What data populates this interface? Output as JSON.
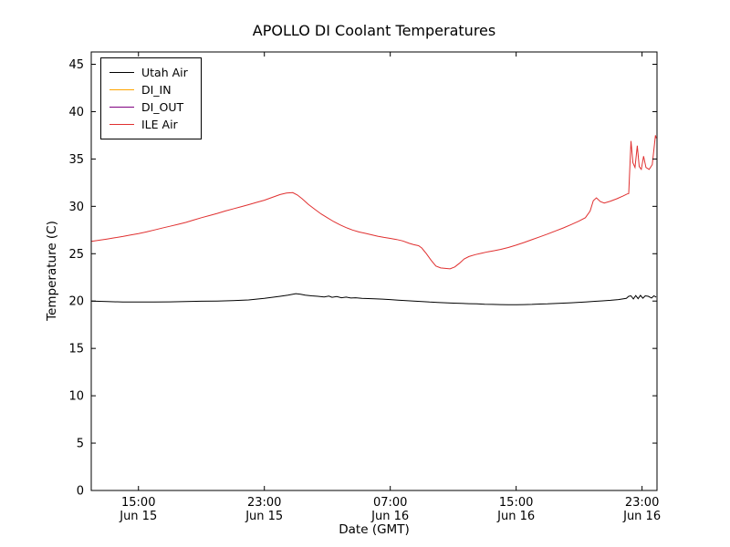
{
  "figure": {
    "background_color": "#ffffff",
    "axes_edge_color": "#000000"
  },
  "chart_data": {
    "type": "line",
    "title": "APOLLO DI Coolant Temperatures",
    "xlabel": "Date (GMT)",
    "ylabel": "Temperature (C)",
    "grid": false,
    "legend_position": "upper left",
    "ylim": [
      0,
      46.3
    ],
    "yticks": [
      0,
      5,
      10,
      15,
      20,
      25,
      30,
      35,
      40,
      45
    ],
    "x_axis_note": "x values are hours after Jun 15 12:00 GMT",
    "xlim_hours": [
      0,
      35.95
    ],
    "xticks": [
      {
        "t": 3,
        "time": "15:00",
        "date": "Jun 15"
      },
      {
        "t": 11,
        "time": "23:00",
        "date": "Jun 15"
      },
      {
        "t": 19,
        "time": "07:00",
        "date": "Jun 16"
      },
      {
        "t": 27,
        "time": "15:00",
        "date": "Jun 16"
      },
      {
        "t": 35,
        "time": "23:00",
        "date": "Jun 16"
      }
    ],
    "series": [
      {
        "name": "Utah Air",
        "color": "#000000",
        "points": [
          [
            0,
            20.0
          ],
          [
            1,
            19.95
          ],
          [
            2,
            19.9
          ],
          [
            3,
            19.9
          ],
          [
            4,
            19.9
          ],
          [
            5,
            19.92
          ],
          [
            6,
            19.95
          ],
          [
            7,
            19.98
          ],
          [
            8,
            20.0
          ],
          [
            9,
            20.05
          ],
          [
            10,
            20.12
          ],
          [
            11,
            20.28
          ],
          [
            12,
            20.5
          ],
          [
            12.5,
            20.62
          ],
          [
            13,
            20.78
          ],
          [
            13.3,
            20.72
          ],
          [
            13.6,
            20.62
          ],
          [
            14,
            20.55
          ],
          [
            14.4,
            20.5
          ],
          [
            14.8,
            20.44
          ],
          [
            15.1,
            20.52
          ],
          [
            15.3,
            20.4
          ],
          [
            15.6,
            20.47
          ],
          [
            15.9,
            20.35
          ],
          [
            16.2,
            20.42
          ],
          [
            16.5,
            20.32
          ],
          [
            16.8,
            20.35
          ],
          [
            17.2,
            20.28
          ],
          [
            17.6,
            20.26
          ],
          [
            18,
            20.24
          ],
          [
            18.5,
            20.2
          ],
          [
            19,
            20.16
          ],
          [
            19.5,
            20.1
          ],
          [
            20,
            20.05
          ],
          [
            20.5,
            20.0
          ],
          [
            21,
            19.95
          ],
          [
            21.5,
            19.9
          ],
          [
            22,
            19.86
          ],
          [
            22.5,
            19.82
          ],
          [
            23,
            19.78
          ],
          [
            23.5,
            19.75
          ],
          [
            24,
            19.72
          ],
          [
            24.5,
            19.7
          ],
          [
            25,
            19.67
          ],
          [
            25.5,
            19.65
          ],
          [
            26,
            19.63
          ],
          [
            26.5,
            19.62
          ],
          [
            27,
            19.62
          ],
          [
            27.5,
            19.63
          ],
          [
            28,
            19.65
          ],
          [
            28.5,
            19.68
          ],
          [
            29,
            19.7
          ],
          [
            29.5,
            19.74
          ],
          [
            30,
            19.78
          ],
          [
            30.5,
            19.82
          ],
          [
            31,
            19.87
          ],
          [
            31.5,
            19.92
          ],
          [
            32,
            19.97
          ],
          [
            32.5,
            20.02
          ],
          [
            33,
            20.08
          ],
          [
            33.5,
            20.16
          ],
          [
            34,
            20.28
          ],
          [
            34.15,
            20.5
          ],
          [
            34.3,
            20.55
          ],
          [
            34.45,
            20.22
          ],
          [
            34.6,
            20.58
          ],
          [
            34.75,
            20.25
          ],
          [
            34.9,
            20.6
          ],
          [
            35.05,
            20.3
          ],
          [
            35.2,
            20.55
          ],
          [
            35.4,
            20.5
          ],
          [
            35.6,
            20.32
          ],
          [
            35.75,
            20.55
          ],
          [
            35.9,
            20.42
          ]
        ]
      },
      {
        "name": "DI_IN",
        "color": "#ffa500",
        "points": [],
        "note": "in legend, no data visible in plot"
      },
      {
        "name": "DI_OUT",
        "color": "#800080",
        "points": [],
        "note": "in legend, no data visible in plot"
      },
      {
        "name": "ILE Air",
        "color": "#e03030",
        "points": [
          [
            0,
            26.3
          ],
          [
            0.5,
            26.42
          ],
          [
            1,
            26.55
          ],
          [
            1.5,
            26.68
          ],
          [
            2,
            26.82
          ],
          [
            2.5,
            26.97
          ],
          [
            3,
            27.12
          ],
          [
            3.5,
            27.3
          ],
          [
            4,
            27.5
          ],
          [
            4.5,
            27.7
          ],
          [
            5,
            27.9
          ],
          [
            5.5,
            28.1
          ],
          [
            6,
            28.3
          ],
          [
            6.5,
            28.55
          ],
          [
            7,
            28.8
          ],
          [
            7.5,
            29.02
          ],
          [
            8,
            29.25
          ],
          [
            8.5,
            29.5
          ],
          [
            9,
            29.72
          ],
          [
            9.5,
            29.95
          ],
          [
            10,
            30.18
          ],
          [
            10.5,
            30.42
          ],
          [
            11,
            30.65
          ],
          [
            11.5,
            30.95
          ],
          [
            12,
            31.25
          ],
          [
            12.4,
            31.4
          ],
          [
            12.8,
            31.45
          ],
          [
            13.1,
            31.2
          ],
          [
            13.4,
            30.8
          ],
          [
            13.8,
            30.2
          ],
          [
            14.2,
            29.7
          ],
          [
            14.6,
            29.2
          ],
          [
            15,
            28.8
          ],
          [
            15.4,
            28.4
          ],
          [
            15.8,
            28.05
          ],
          [
            16.2,
            27.75
          ],
          [
            16.6,
            27.5
          ],
          [
            17,
            27.3
          ],
          [
            17.4,
            27.15
          ],
          [
            17.8,
            27.0
          ],
          [
            18.2,
            26.85
          ],
          [
            18.6,
            26.72
          ],
          [
            19,
            26.62
          ],
          [
            19.4,
            26.5
          ],
          [
            19.8,
            26.35
          ],
          [
            20.2,
            26.1
          ],
          [
            20.5,
            25.95
          ],
          [
            20.8,
            25.85
          ],
          [
            21,
            25.6
          ],
          [
            21.3,
            25.0
          ],
          [
            21.6,
            24.3
          ],
          [
            21.9,
            23.7
          ],
          [
            22.2,
            23.5
          ],
          [
            22.5,
            23.45
          ],
          [
            22.8,
            23.4
          ],
          [
            23.1,
            23.6
          ],
          [
            23.4,
            24.0
          ],
          [
            23.7,
            24.45
          ],
          [
            24,
            24.7
          ],
          [
            24.4,
            24.9
          ],
          [
            24.8,
            25.05
          ],
          [
            25.2,
            25.2
          ],
          [
            25.6,
            25.32
          ],
          [
            26,
            25.45
          ],
          [
            26.5,
            25.65
          ],
          [
            27,
            25.9
          ],
          [
            27.5,
            26.18
          ],
          [
            28,
            26.48
          ],
          [
            28.5,
            26.78
          ],
          [
            29,
            27.08
          ],
          [
            29.5,
            27.4
          ],
          [
            30,
            27.72
          ],
          [
            30.5,
            28.08
          ],
          [
            31,
            28.45
          ],
          [
            31.4,
            28.8
          ],
          [
            31.7,
            29.5
          ],
          [
            31.9,
            30.6
          ],
          [
            32.1,
            30.9
          ],
          [
            32.35,
            30.5
          ],
          [
            32.6,
            30.35
          ],
          [
            33,
            30.55
          ],
          [
            33.4,
            30.8
          ],
          [
            33.8,
            31.1
          ],
          [
            34.05,
            31.3
          ],
          [
            34.15,
            31.35
          ],
          [
            34.3,
            36.9
          ],
          [
            34.42,
            34.6
          ],
          [
            34.55,
            34.1
          ],
          [
            34.7,
            36.4
          ],
          [
            34.82,
            34.2
          ],
          [
            34.95,
            33.9
          ],
          [
            35.1,
            35.3
          ],
          [
            35.25,
            34.1
          ],
          [
            35.45,
            33.9
          ],
          [
            35.65,
            34.4
          ],
          [
            35.85,
            37.5
          ],
          [
            35.9,
            37.2
          ]
        ]
      }
    ]
  }
}
